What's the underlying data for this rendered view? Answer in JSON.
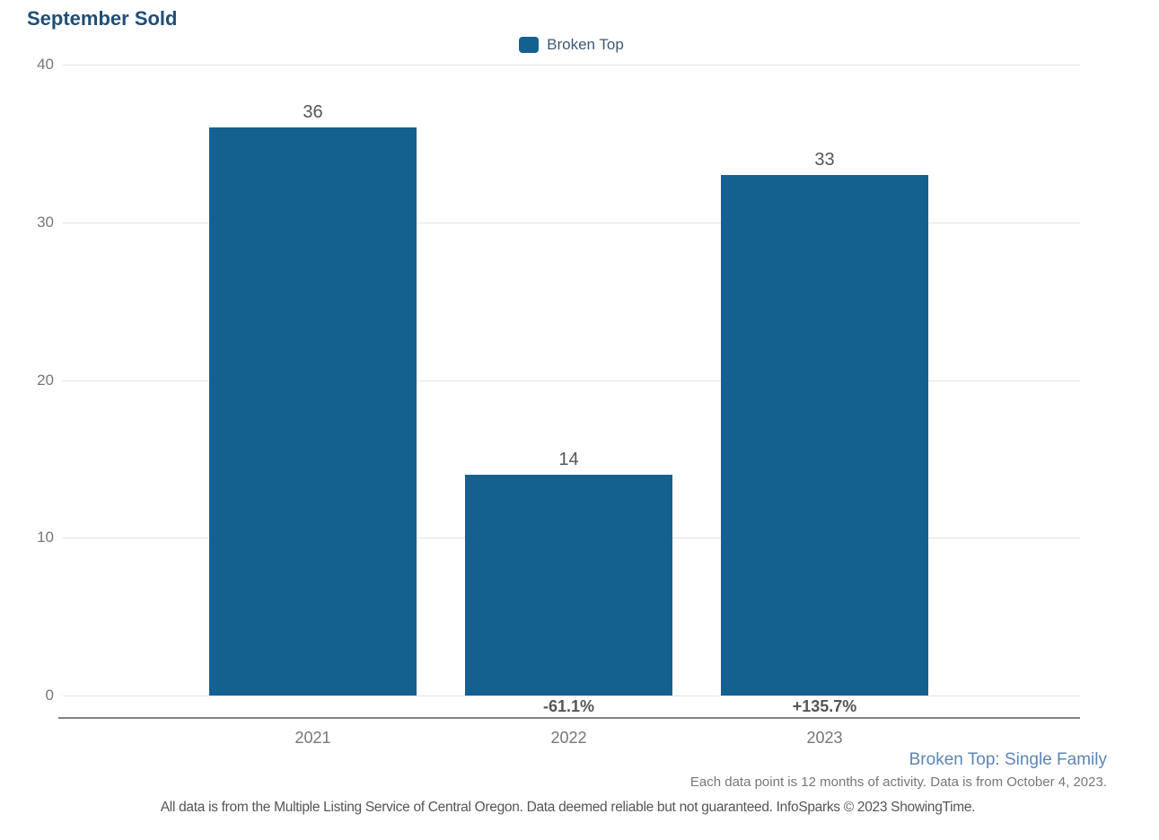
{
  "title": "September Sold",
  "chart_data": {
    "type": "bar",
    "title": "September Sold",
    "legend": [
      "Broken Top"
    ],
    "legend_position": "top-center",
    "categories": [
      "2021",
      "2022",
      "2023"
    ],
    "series": [
      {
        "name": "Broken Top",
        "values": [
          36,
          14,
          33
        ]
      }
    ],
    "value_labels": [
      "36",
      "14",
      "33"
    ],
    "pct_change_labels": [
      "",
      "-61.1%",
      "+135.7%"
    ],
    "yticks": [
      "40",
      "30",
      "20",
      "10",
      "0"
    ],
    "ylim": [
      0,
      40
    ],
    "grid": "horizontal",
    "bar_color": "#14618f"
  },
  "footer": {
    "series_note": "Broken Top: Single Family",
    "data_note": "Each data point is 12 months of activity. Data is from October 4, 2023.",
    "disclaimer": "All data is from the Multiple Listing Service of Central Oregon. Data deemed reliable but not guaranteed. InfoSparks © 2023 ShowingTime."
  },
  "colors": {
    "bar": "#14618f",
    "title_text": "#1f4e79",
    "legend_text": "#3f5a74",
    "series_note_text": "#5b86b8",
    "gridline": "#e3e3e3",
    "axis_line": "#808080",
    "tick_text": "#777777",
    "value_text": "#555555"
  }
}
